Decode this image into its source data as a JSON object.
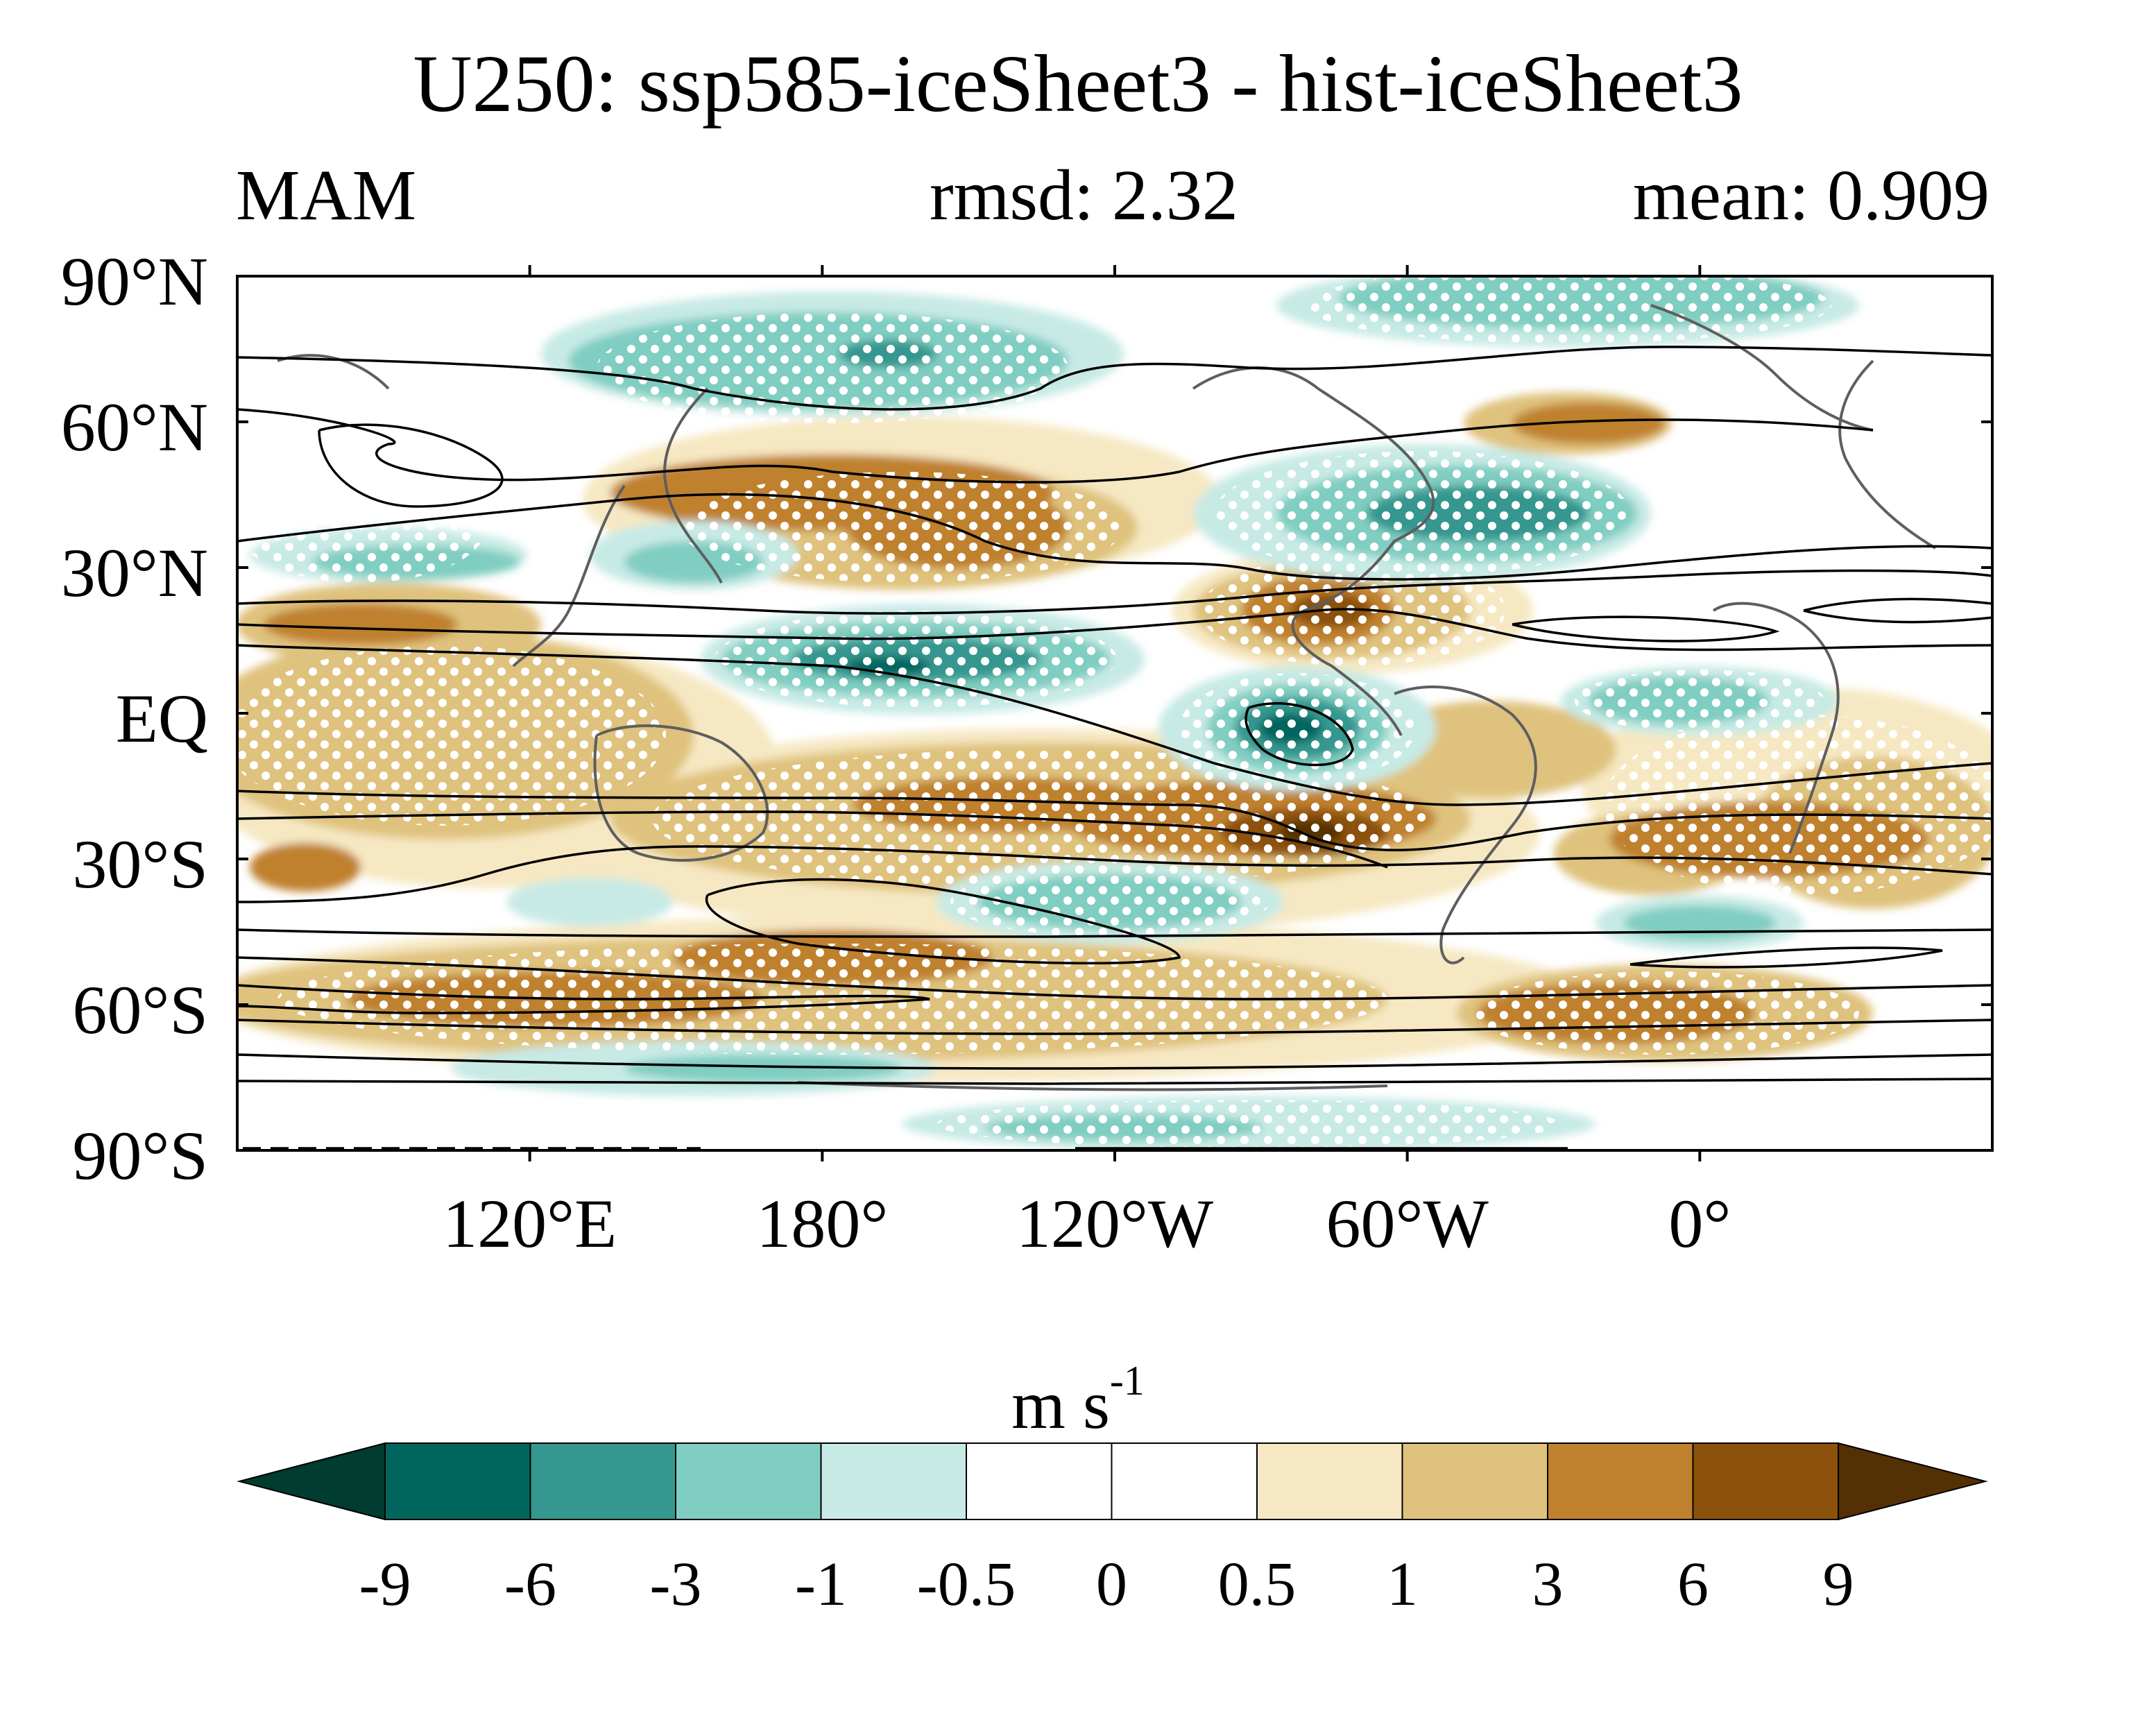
{
  "title": "U250: ssp585-iceSheet3 - hist-iceSheet3",
  "season": "MAM",
  "rmsd_label": "rmsd: 2.32",
  "mean_label": "mean: 0.909",
  "map": {
    "projection": "cylindrical equidistant",
    "lon_range": [
      60,
      420
    ],
    "lat_range": [
      -90,
      90
    ],
    "lat_ticks": [
      {
        "value": 90,
        "label": "90°N"
      },
      {
        "value": 60,
        "label": "60°N"
      },
      {
        "value": 30,
        "label": "30°N"
      },
      {
        "value": 0,
        "label": "EQ"
      },
      {
        "value": -30,
        "label": "30°S"
      },
      {
        "value": -60,
        "label": "60°S"
      },
      {
        "value": -90,
        "label": "90°S"
      }
    ],
    "lon_ticks": [
      {
        "value": 120,
        "label": "120°E"
      },
      {
        "value": 180,
        "label": "180°"
      },
      {
        "value": 240,
        "label": "120°W"
      },
      {
        "value": 300,
        "label": "60°W"
      },
      {
        "value": 360,
        "label": "0°"
      }
    ],
    "overlays": [
      "filled anomaly contours",
      "white stippling (significance)",
      "black climatology contours",
      "gray coastlines"
    ]
  },
  "colorbar": {
    "unit_base": "m s",
    "unit_exp": "-1",
    "levels": [
      "-9",
      "-6",
      "-3",
      "-1",
      "-0.5",
      "0",
      "0.5",
      "1",
      "3",
      "6",
      "9"
    ],
    "colors": [
      "#003c30",
      "#01665e",
      "#35978f",
      "#80cdc1",
      "#c7eae5",
      "#ffffff",
      "#ffffff",
      "#f6e8c3",
      "#dfc27d",
      "#bf812d",
      "#8c510a",
      "#543005"
    ]
  }
}
